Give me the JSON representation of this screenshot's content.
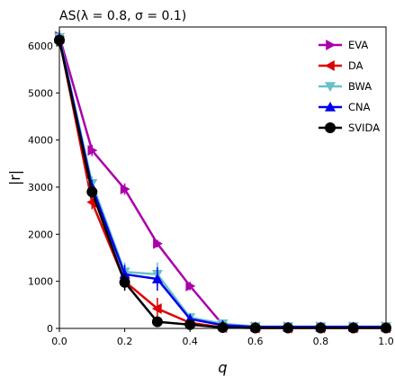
{
  "chart_data": {
    "type": "line",
    "title": "AS(λ = 0.8, σ = 0.1)",
    "xlabel": "q",
    "ylabel": "|r|",
    "xlim": [
      0.0,
      1.0
    ],
    "ylim": [
      0,
      6400
    ],
    "xticks": [
      0.0,
      0.2,
      0.4,
      0.6,
      0.8,
      1.0
    ],
    "xtick_labels": [
      "0.0",
      "0.2",
      "0.4",
      "0.6",
      "0.8",
      "1.0"
    ],
    "yticks": [
      0,
      1000,
      2000,
      3000,
      4000,
      5000,
      6000
    ],
    "ytick_labels": [
      "0",
      "1000",
      "2000",
      "3000",
      "4000",
      "5000",
      "6000"
    ],
    "grid": false,
    "legend_position": "top-right",
    "x": [
      0.0,
      0.1,
      0.2,
      0.3,
      0.4,
      0.5,
      0.6,
      0.7,
      0.8,
      0.9,
      1.0
    ],
    "series": [
      {
        "name": "EVA",
        "color": "#aa00aa",
        "marker": "triangle-right",
        "values": [
          6200,
          3780,
          2960,
          1800,
          900,
          80,
          30,
          30,
          30,
          30,
          30
        ],
        "errors": [
          120,
          120,
          120,
          80,
          90,
          30,
          20,
          20,
          20,
          20,
          20
        ]
      },
      {
        "name": "DA",
        "color": "#dd0000",
        "marker": "triangle-left",
        "values": [
          6150,
          2680,
          1000,
          420,
          120,
          20,
          10,
          10,
          10,
          10,
          10
        ],
        "errors": [
          120,
          150,
          150,
          230,
          60,
          15,
          10,
          10,
          10,
          10,
          10
        ]
      },
      {
        "name": "BWA",
        "color": "#66c2c8",
        "marker": "triangle-down",
        "values": [
          6180,
          3080,
          1200,
          1150,
          230,
          100,
          40,
          40,
          40,
          40,
          40
        ],
        "errors": [
          120,
          150,
          200,
          250,
          100,
          60,
          30,
          30,
          30,
          30,
          30
        ]
      },
      {
        "name": "CNA",
        "color": "#0000ee",
        "marker": "triangle-up",
        "values": [
          6150,
          3000,
          1150,
          1050,
          200,
          70,
          30,
          30,
          30,
          30,
          30
        ],
        "errors": [
          120,
          150,
          200,
          250,
          100,
          60,
          30,
          30,
          30,
          30,
          30
        ]
      },
      {
        "name": "SVIDA",
        "color": "#000000",
        "marker": "circle",
        "values": [
          6120,
          2900,
          980,
          140,
          80,
          20,
          10,
          10,
          10,
          10,
          10
        ],
        "errors": [
          120,
          120,
          180,
          100,
          50,
          15,
          10,
          10,
          10,
          10,
          10
        ]
      }
    ]
  }
}
